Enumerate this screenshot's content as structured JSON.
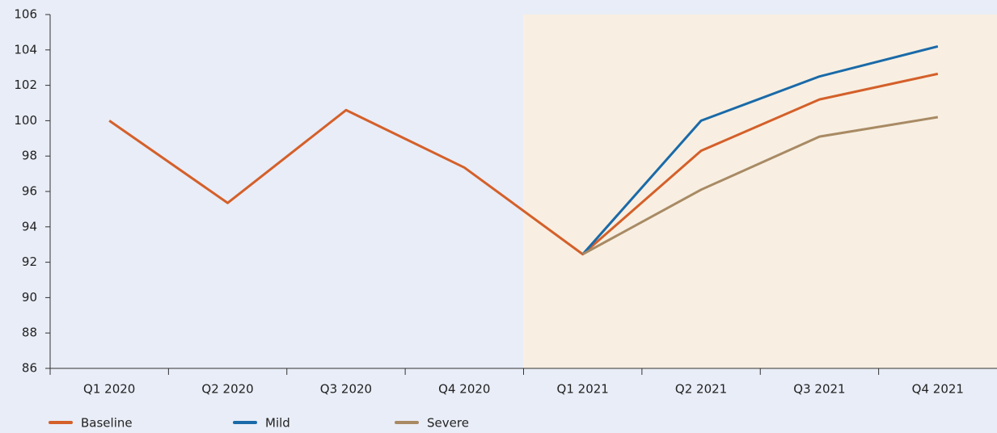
{
  "chart_data": {
    "type": "line",
    "categories": [
      "Q1 2020",
      "Q2 2020",
      "Q3 2020",
      "Q4 2020",
      "Q1 2021",
      "Q2 2021",
      "Q3 2021",
      "Q4 2021"
    ],
    "series": [
      {
        "name": "Baseline",
        "color": "#d4602a",
        "values": [
          100,
          95.35,
          100.6,
          97.35,
          92.45,
          98.3,
          101.2,
          102.65
        ]
      },
      {
        "name": "Mild",
        "color": "#1a6aa8",
        "values": [
          null,
          null,
          null,
          null,
          92.45,
          100,
          102.5,
          104.2
        ]
      },
      {
        "name": "Severe",
        "color": "#a88a64",
        "values": [
          null,
          null,
          null,
          null,
          92.45,
          96.1,
          99.1,
          100.2
        ]
      }
    ],
    "ylim": [
      86,
      106
    ],
    "yticks": [
      86,
      88,
      90,
      92,
      94,
      96,
      98,
      100,
      102,
      104,
      106
    ]
  }
}
